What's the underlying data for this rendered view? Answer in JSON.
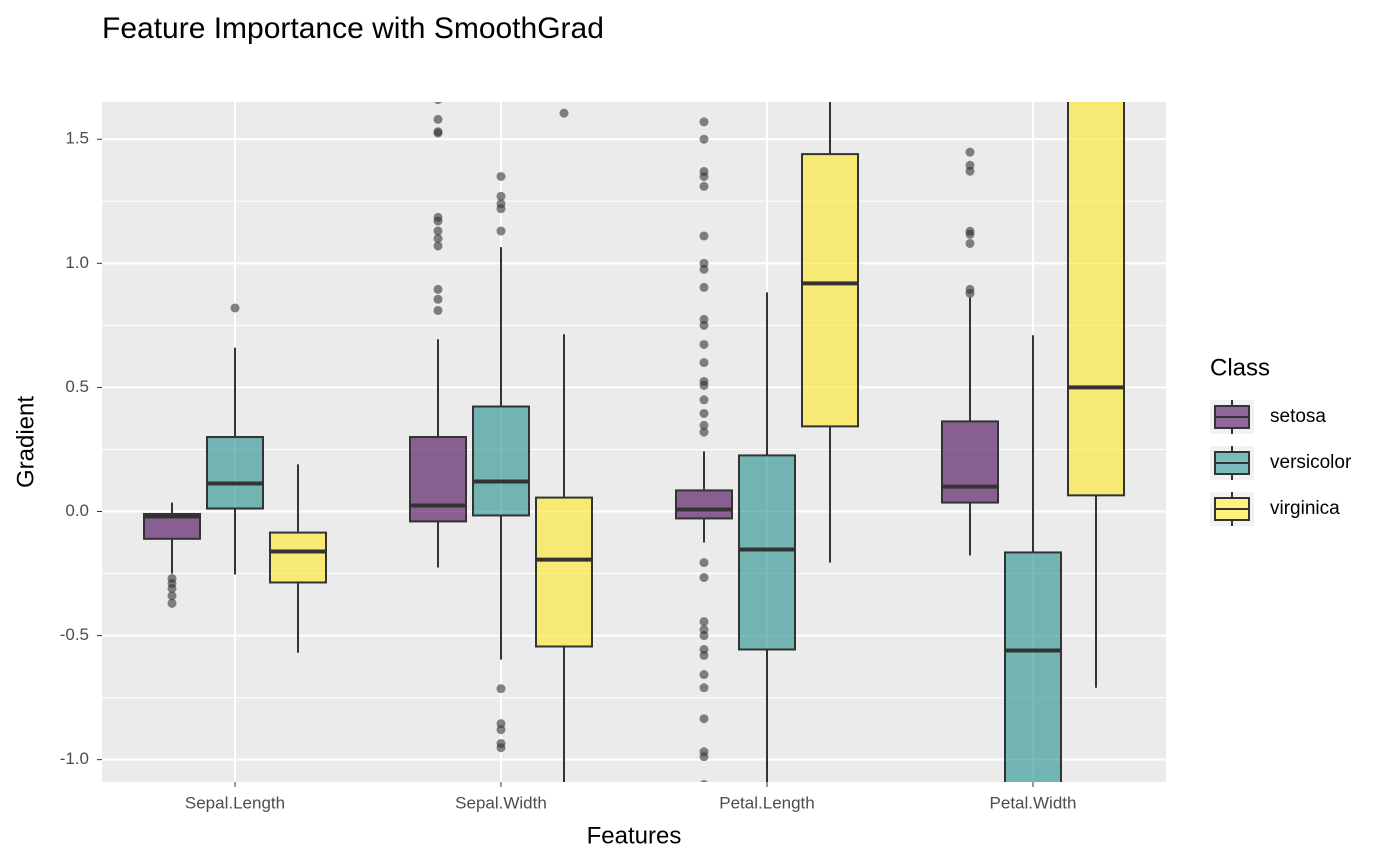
{
  "chart_data": {
    "type": "boxplot",
    "title": "Feature Importance with SmoothGrad",
    "x_label": "Features",
    "y_label": "Gradient",
    "categories": [
      "Sepal.Length",
      "Sepal.Width",
      "Petal.Length",
      "Petal.Width"
    ],
    "legend_title": "Class",
    "legend_position": "right",
    "grid": true,
    "ylim": [
      -1.09,
      1.65
    ],
    "yticks": [
      {
        "value": -1,
        "label": "-1.0"
      },
      -0.5,
      {
        "value": 0,
        "label": "0.0"
      },
      0.5,
      {
        "value": 1,
        "label": "1.0"
      },
      1.5
    ],
    "series": [
      {
        "name": "setosa",
        "color": "#440154",
        "values": [
          {
            "whisker_low": -0.25,
            "q1": -0.11,
            "median": -0.02,
            "q3": -0.01,
            "whisker_high": 0.036,
            "outliers": [
              -0.27,
              -0.29,
              -0.31,
              -0.34,
              -0.37
            ]
          },
          {
            "whisker_low": -0.226,
            "q1": -0.04,
            "median": 0.024,
            "q3": 0.3,
            "whisker_high": 0.694,
            "outliers": [
              1.66,
              1.58,
              1.53,
              1.525,
              1.185,
              1.17,
              1.13,
              1.1,
              1.07,
              0.895,
              0.855,
              0.81
            ]
          },
          {
            "whisker_low": -0.125,
            "q1": -0.028,
            "median": 0.008,
            "q3": 0.085,
            "whisker_high": 0.242,
            "outliers": [
              1.57,
              1.5,
              1.37,
              1.35,
              1.31,
              1.11,
              1.0,
              0.976,
              0.903,
              0.774,
              0.75,
              0.673,
              0.6,
              0.524,
              0.508,
              0.45,
              0.395,
              0.347,
              0.32,
              -0.206,
              -0.266,
              -0.444,
              -0.476,
              -0.5,
              -0.556,
              -0.58,
              -0.657,
              -0.71,
              -0.835,
              -0.968,
              -0.988,
              -1.1
            ]
          },
          {
            "whisker_low": -0.177,
            "q1": 0.036,
            "median": 0.1,
            "q3": 0.363,
            "whisker_high": 0.863,
            "outliers": [
              1.448,
              1.395,
              1.371,
              1.129,
              1.117,
              1.08,
              0.895,
              0.879
            ]
          }
        ]
      },
      {
        "name": "versicolor",
        "color": "#21908C",
        "values": [
          {
            "whisker_low": -0.254,
            "q1": 0.012,
            "median": 0.113,
            "q3": 0.3,
            "whisker_high": 0.66,
            "outliers": [
              0.82
            ]
          },
          {
            "whisker_low": -0.597,
            "q1": -0.016,
            "median": 0.121,
            "q3": 0.423,
            "whisker_high": 1.065,
            "outliers": [
              1.35,
              1.27,
              1.24,
              1.22,
              1.13,
              -0.714,
              -0.855,
              -0.879,
              -0.935,
              -0.952
            ]
          },
          {
            "whisker_low": -1.2,
            "q1": -0.556,
            "median": -0.153,
            "q3": 0.226,
            "whisker_high": 0.883,
            "outliers": []
          },
          {
            "whisker_low": -1.5,
            "q1": -1.3,
            "median": -0.56,
            "q3": -0.165,
            "whisker_high": 0.71,
            "outliers": []
          }
        ]
      },
      {
        "name": "virginica",
        "color": "#FDE725",
        "values": [
          {
            "whisker_low": -0.569,
            "q1": -0.286,
            "median": -0.161,
            "q3": -0.085,
            "whisker_high": 0.19,
            "outliers": []
          },
          {
            "whisker_low": -1.2,
            "q1": -0.544,
            "median": -0.194,
            "q3": 0.056,
            "whisker_high": 0.714,
            "outliers": [
              1.605
            ]
          },
          {
            "whisker_low": -0.206,
            "q1": 0.343,
            "median": 0.919,
            "q3": 1.44,
            "whisker_high": 1.8,
            "outliers": []
          },
          {
            "whisker_low": -0.71,
            "q1": 0.065,
            "median": 0.5,
            "q3": 1.8,
            "whisker_high": 2.0,
            "outliers": []
          }
        ]
      }
    ]
  }
}
